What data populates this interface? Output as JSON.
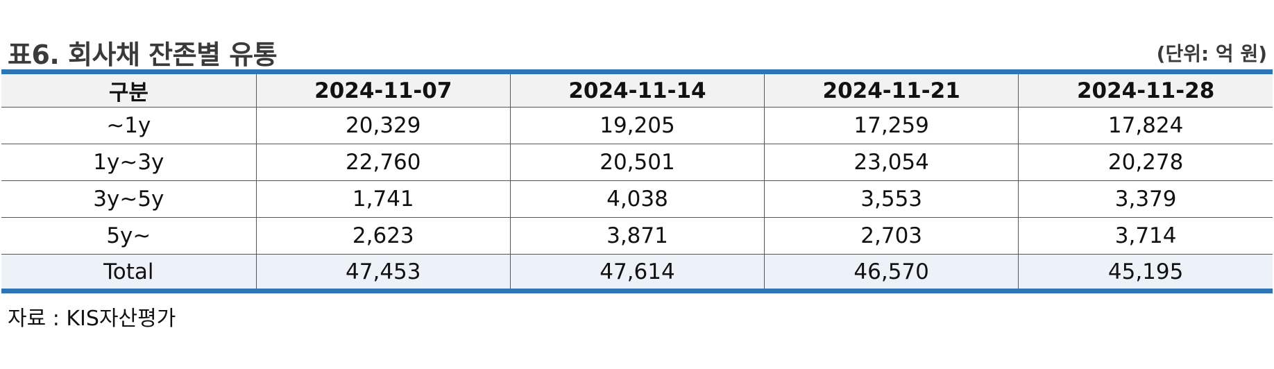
{
  "title": "표6. 회사채 잔존별 유통",
  "unit": "(단위: 억 원)",
  "table": {
    "headers": [
      "구분",
      "2024-11-07",
      "2024-11-14",
      "2024-11-21",
      "2024-11-28"
    ],
    "rows": [
      [
        "~1y",
        "20,329",
        "19,205",
        "17,259",
        "17,824"
      ],
      [
        "1y~3y",
        "22,760",
        "20,501",
        "23,054",
        "20,278"
      ],
      [
        "3y~5y",
        "1,741",
        "4,038",
        "3,553",
        "3,379"
      ],
      [
        "5y~",
        "2,623",
        "3,871",
        "2,703",
        "3,714"
      ],
      [
        "Total",
        "47,453",
        "47,614",
        "46,570",
        "45,195"
      ]
    ]
  },
  "source": "자료 : KIS자산평가",
  "colors": {
    "accent_border": "#2e75b6",
    "header_bg": "#f2f2f2",
    "total_bg": "#edf2f9"
  }
}
